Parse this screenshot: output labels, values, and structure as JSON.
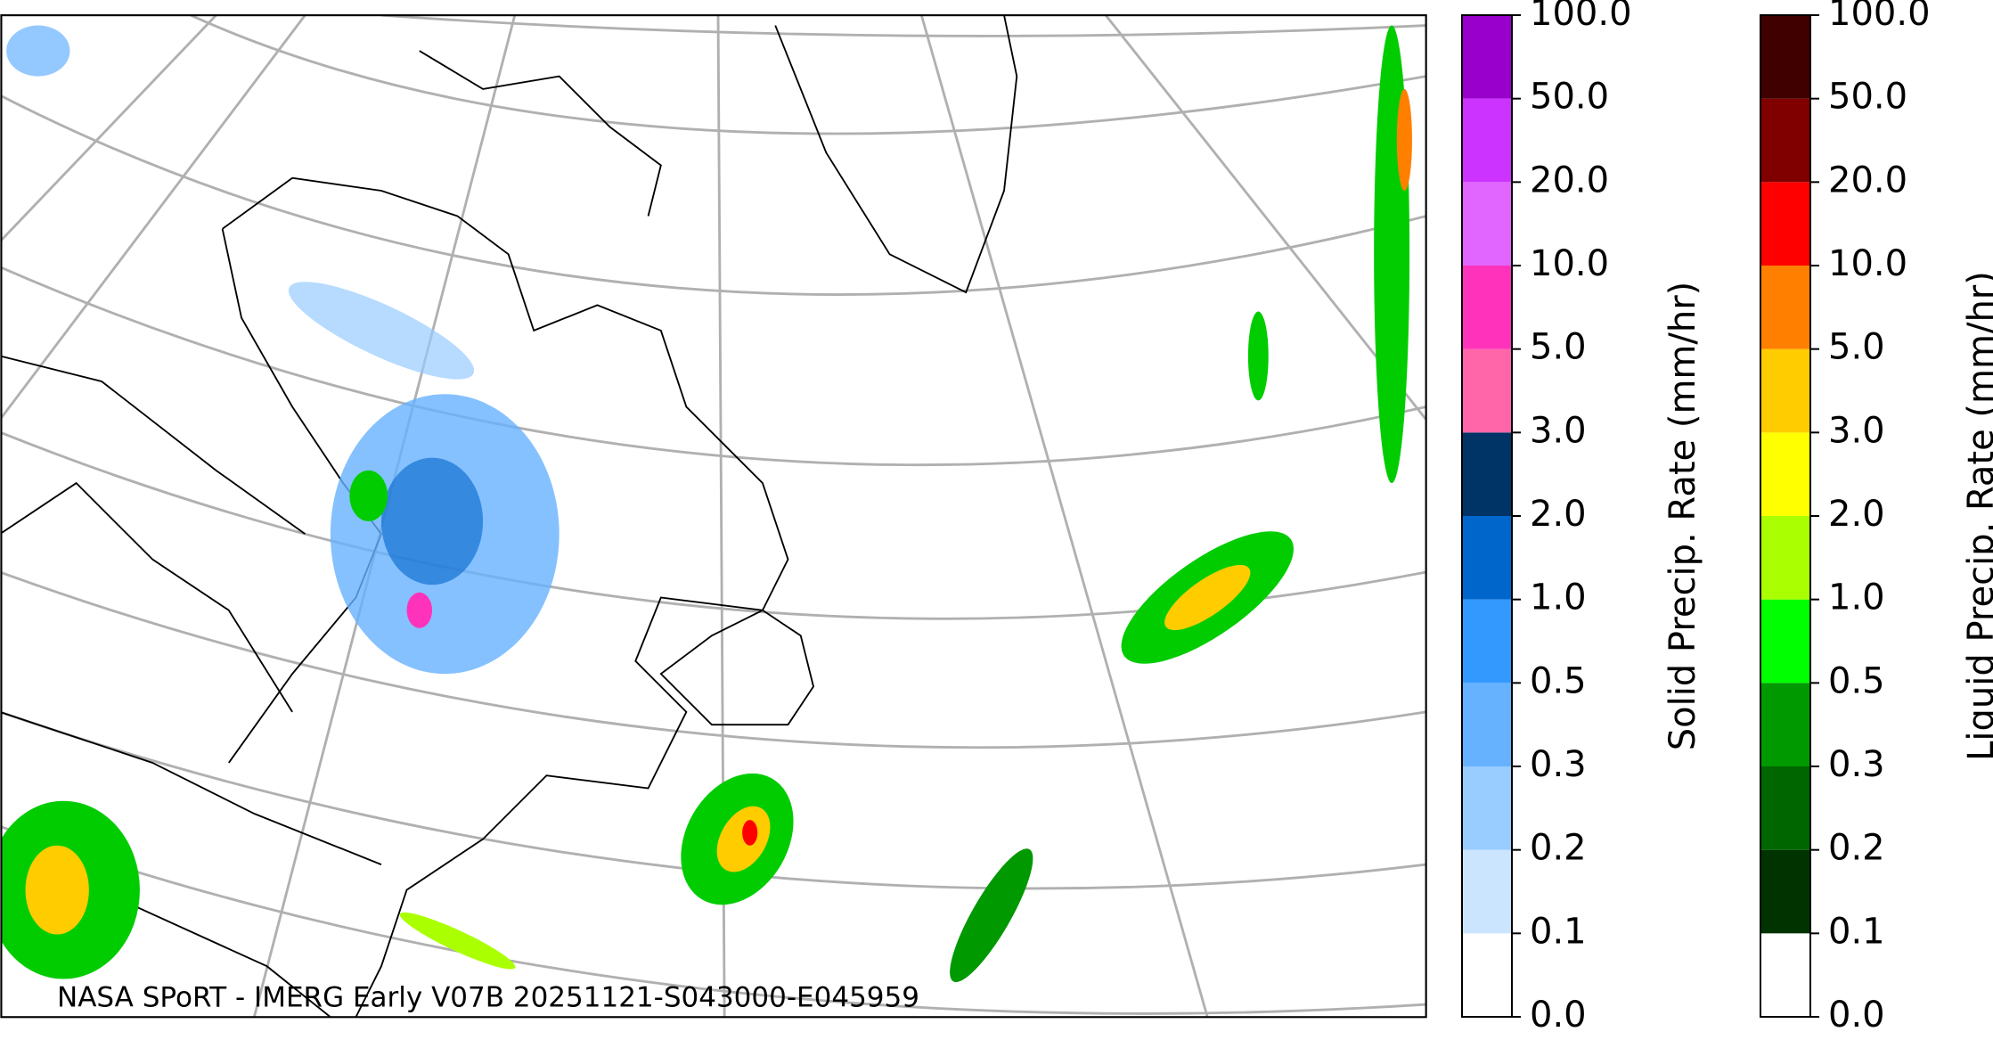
{
  "caption": "NASA SPoRT - IMERG Early V07B 20251121-S043000-E045959",
  "colorbars": [
    {
      "label": "Solid Precip. Rate (mm/hr)",
      "ticks": [
        {
          "value": 0,
          "label": "0.0"
        },
        0.1,
        0.2,
        0.3,
        0.5,
        {
          "value": 1,
          "label": "1.0"
        },
        {
          "value": 2,
          "label": "2.0"
        },
        {
          "value": 3,
          "label": "3.0"
        },
        {
          "value": 5,
          "label": "5.0"
        },
        {
          "value": 10,
          "label": "10.0"
        },
        {
          "value": 20,
          "label": "20.0"
        },
        {
          "value": 50,
          "label": "50.0"
        },
        {
          "value": 100,
          "label": "100.0"
        }
      ],
      "colors": [
        "#ffffff",
        "#cce5ff",
        "#99ccff",
        "#66b2ff",
        "#3399ff",
        "#0066cc",
        "#003366",
        "#ff66aa",
        "#ff33bb",
        "#e066ff",
        "#cc33ff",
        "#9900cc"
      ]
    },
    {
      "label": "Liquid Precip. Rate (mm/hr)",
      "ticks": [
        {
          "value": 0,
          "label": "0.0"
        },
        0.1,
        0.2,
        0.3,
        0.5,
        {
          "value": 1,
          "label": "1.0"
        },
        {
          "value": 2,
          "label": "2.0"
        },
        {
          "value": 3,
          "label": "3.0"
        },
        {
          "value": 5,
          "label": "5.0"
        },
        {
          "value": 10,
          "label": "10.0"
        },
        {
          "value": 20,
          "label": "20.0"
        },
        {
          "value": 50,
          "label": "50.0"
        },
        {
          "value": 100,
          "label": "100.0"
        }
      ],
      "colors": [
        "#ffffff",
        "#003300",
        "#006600",
        "#009900",
        "#00ff00",
        "#aaff00",
        "#ffff00",
        "#ffcc00",
        "#ff8000",
        "#ff0000",
        "#800000",
        "#400000"
      ]
    }
  ]
}
